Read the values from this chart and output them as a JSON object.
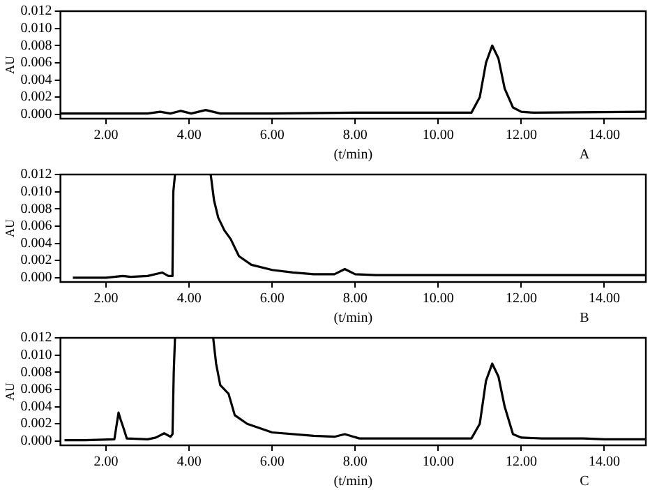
{
  "chart_data": [
    {
      "type": "line",
      "xlabel": "(t/min)",
      "ylabel": "AU",
      "annotations": [
        "A"
      ],
      "grid": false,
      "marker": "none",
      "line_style": "solid",
      "legend": false,
      "xlim": [
        0.9,
        15
      ],
      "xticks": [
        {
          "value": 2,
          "label": "2.00"
        },
        {
          "value": 4,
          "label": "4.00"
        },
        {
          "value": 6,
          "label": "6.00"
        },
        {
          "value": 8,
          "label": "8.00"
        },
        {
          "value": 10,
          "label": "10.00"
        },
        {
          "value": 12,
          "label": "12.00"
        },
        {
          "value": 14,
          "label": "14.00"
        }
      ],
      "ylim": [
        -0.0005,
        0.012
      ],
      "yticks": [
        {
          "value": 0,
          "label": "0.000"
        },
        {
          "value": 0.002,
          "label": "0.002"
        },
        {
          "value": 0.004,
          "label": "0.004"
        },
        {
          "value": 0.006,
          "label": "0.006"
        },
        {
          "value": 0.008,
          "label": "0.008"
        },
        {
          "value": 0.01,
          "label": "0.010"
        },
        {
          "value": 0.012,
          "label": "0.012"
        }
      ],
      "series": [
        {
          "color": "#000000",
          "x": [
            0.9,
            3.0,
            3.3,
            3.55,
            3.8,
            4.05,
            4.4,
            4.75,
            6.0,
            8.0,
            10.8,
            11.0,
            11.15,
            11.3,
            11.45,
            11.6,
            11.8,
            12.0,
            12.3,
            15
          ],
          "values": [
            0.0001,
            0.0001,
            0.0003,
            0.0001,
            0.0004,
            0.0001,
            0.0005,
            0.0001,
            0.0001,
            0.0002,
            0.0002,
            0.002,
            0.006,
            0.008,
            0.0065,
            0.003,
            0.0008,
            0.0003,
            0.0002,
            0.0003
          ]
        }
      ]
    },
    {
      "type": "line",
      "xlabel": "(t/min)",
      "ylabel": "AU",
      "annotations": [
        "B"
      ],
      "grid": false,
      "marker": "none",
      "line_style": "solid",
      "legend": false,
      "xlim": [
        0.9,
        15
      ],
      "xticks": [
        {
          "value": 2,
          "label": "2.00"
        },
        {
          "value": 4,
          "label": "4.00"
        },
        {
          "value": 6,
          "label": "6.00"
        },
        {
          "value": 8,
          "label": "8.00"
        },
        {
          "value": 10,
          "label": "10.00"
        },
        {
          "value": 12,
          "label": "12.00"
        },
        {
          "value": 14,
          "label": "14.00"
        }
      ],
      "ylim": [
        -0.0005,
        0.012
      ],
      "yticks": [
        {
          "value": 0,
          "label": "0.000"
        },
        {
          "value": 0.002,
          "label": "0.002"
        },
        {
          "value": 0.004,
          "label": "0.004"
        },
        {
          "value": 0.006,
          "label": "0.006"
        },
        {
          "value": 0.008,
          "label": "0.008"
        },
        {
          "value": 0.01,
          "label": "0.010"
        },
        {
          "value": 0.012,
          "label": "0.012"
        }
      ],
      "series": [
        {
          "color": "#000000",
          "x": [
            1.2,
            2.0,
            2.2,
            2.4,
            2.6,
            3.0,
            3.35,
            3.5,
            3.58,
            3.6,
            3.62,
            3.66,
            3.7,
            4.52,
            4.6,
            4.7,
            4.85,
            5.0,
            5.2,
            5.5,
            6.0,
            6.5,
            7.0,
            7.5,
            7.75,
            8.0,
            8.5,
            10.0,
            15
          ],
          "values": [
            0.0,
            0.0,
            0.0001,
            0.0002,
            0.0001,
            0.0002,
            0.0006,
            0.0002,
            0.0002,
            0.0008,
            0.01,
            0.012,
            null,
            0.012,
            0.009,
            0.007,
            0.0055,
            0.0045,
            0.0025,
            0.0015,
            0.0009,
            0.0006,
            0.0004,
            0.0004,
            0.001,
            0.0004,
            0.0003,
            0.0003,
            0.0003
          ]
        }
      ]
    },
    {
      "type": "line",
      "xlabel": "(t/min)",
      "ylabel": "AU",
      "annotations": [
        "C"
      ],
      "grid": false,
      "marker": "none",
      "line_style": "solid",
      "legend": false,
      "xlim": [
        0.9,
        15
      ],
      "xticks": [
        {
          "value": 2,
          "label": "2.00"
        },
        {
          "value": 4,
          "label": "4.00"
        },
        {
          "value": 6,
          "label": "6.00"
        },
        {
          "value": 8,
          "label": "8.00"
        },
        {
          "value": 10,
          "label": "10.00"
        },
        {
          "value": 12,
          "label": "12.00"
        },
        {
          "value": 14,
          "label": "14.00"
        }
      ],
      "ylim": [
        -0.0005,
        0.012
      ],
      "yticks": [
        {
          "value": 0,
          "label": "0.000"
        },
        {
          "value": 0.002,
          "label": "0.002"
        },
        {
          "value": 0.004,
          "label": "0.004"
        },
        {
          "value": 0.006,
          "label": "0.006"
        },
        {
          "value": 0.008,
          "label": "0.008"
        },
        {
          "value": 0.01,
          "label": "0.010"
        },
        {
          "value": 0.012,
          "label": "0.012"
        }
      ],
      "series": [
        {
          "color": "#000000",
          "x": [
            1.0,
            1.5,
            2.2,
            2.3,
            2.35,
            2.42,
            2.5,
            3.0,
            3.2,
            3.4,
            3.55,
            3.6,
            3.63,
            3.66,
            3.7,
            4.58,
            4.65,
            4.75,
            4.95,
            5.1,
            5.4,
            6.0,
            7.0,
            7.5,
            7.75,
            8.1,
            10.8,
            11.0,
            11.15,
            11.3,
            11.45,
            11.6,
            11.8,
            12.0,
            12.5,
            13.5,
            14.0,
            15
          ],
          "values": [
            0.0001,
            0.0001,
            0.0002,
            0.0033,
            0.0025,
            0.0015,
            0.0003,
            0.0002,
            0.0004,
            0.0009,
            0.0005,
            0.0008,
            0.008,
            0.012,
            null,
            0.012,
            0.009,
            0.0065,
            0.0055,
            0.003,
            0.002,
            0.001,
            0.0006,
            0.0005,
            0.0008,
            0.0003,
            0.0003,
            0.002,
            0.007,
            0.009,
            0.0075,
            0.004,
            0.0008,
            0.0004,
            0.0003,
            0.0003,
            0.0002,
            0.0002
          ]
        }
      ]
    }
  ]
}
